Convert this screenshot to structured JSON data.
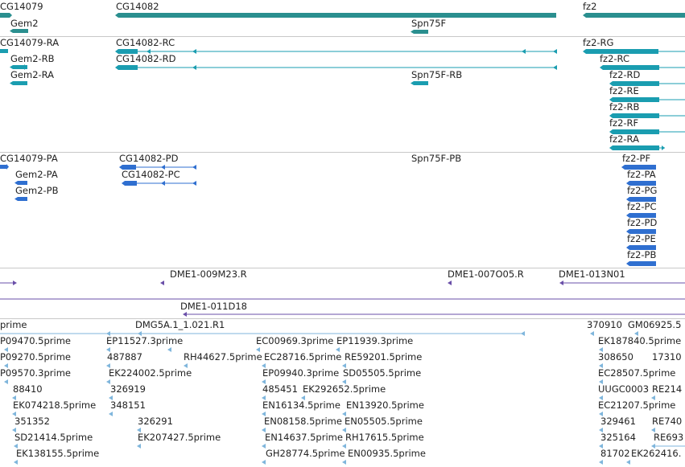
{
  "colors": {
    "gene": "#2a8f8f",
    "transcript": "#1a9db0",
    "protein": "#2f6fd0",
    "clone": "#6a4fa8",
    "est": "#7fb6dc",
    "separator": "#c8c8c8"
  },
  "genes": {
    "cg14079": "CG14079",
    "gem2": "Gem2",
    "cg14082": "CG14082",
    "spn75f": "Spn75F",
    "fz2": "fz2"
  },
  "transcripts": {
    "cg14079_ra": "CG14079-RA",
    "gem2_rb": "Gem2-RB",
    "gem2_ra": "Gem2-RA",
    "cg14082_rc": "CG14082-RC",
    "cg14082_rd": "CG14082-RD",
    "spn75f_rb": "Spn75F-RB",
    "fz2_rg": "fz2-RG",
    "fz2_rc": "fz2-RC",
    "fz2_rd": "fz2-RD",
    "fz2_re": "fz2-RE",
    "fz2_rb": "fz2-RB",
    "fz2_rf": "fz2-RF",
    "fz2_ra": "fz2-RA"
  },
  "proteins": {
    "cg14079_pa": "CG14079-PA",
    "gem2_pa": "Gem2-PA",
    "gem2_pb": "Gem2-PB",
    "cg14082_pd": "CG14082-PD",
    "cg14082_pc": "CG14082-PC",
    "spn75f_pb": "Spn75F-PB",
    "fz2_pf": "fz2-PF",
    "fz2_pa": "fz2-PA",
    "fz2_pg": "fz2-PG",
    "fz2_pc": "fz2-PC",
    "fz2_pd": "fz2-PD",
    "fz2_pe": "fz2-PE",
    "fz2_pb": "fz2-PB"
  },
  "clones": {
    "c1": "DME1-009M23.R",
    "c2": "DME1-007O05.R",
    "c3": "DME1-013N01",
    "c4": "DME1-011D18"
  },
  "ests": {
    "e01": "prime",
    "e02": "DMG5A.1_1.021.R1",
    "e03": "370910",
    "e04": "GM06925.5",
    "e05": "P09470.5prime",
    "e06": "EP11527.3prime",
    "e07": "EC00969.3prime",
    "e08": "EP11939.3prime",
    "e09": "EK187840.5prime",
    "e10": "P09270.5prime",
    "e11": "487887",
    "e12": "RH44627.5prime",
    "e13": "EC28716.5prime",
    "e14": "RE59201.5prime",
    "e15": "308650",
    "e16": "17310",
    "e17": "P09570.3prime",
    "e18": "EK224002.5prime",
    "e19": "EP09940.3prime",
    "e20": "SD05505.5prime",
    "e21": "EC28507.5prime",
    "e22": "88410",
    "e23": "326919",
    "e24": "485451",
    "e25": "EK292652.5prime",
    "e26": "UUGC0003",
    "e27": "RE214",
    "e28": "EK074218.5prime",
    "e29": "348151",
    "e30": "EN16134.5prime",
    "e31": "EN13920.5prime",
    "e32": "EC21207.5prime",
    "e33": "351352",
    "e34": "326291",
    "e35": "EN08158.5prime",
    "e36": "EN05505.5prime",
    "e37": "329461",
    "e38": "RE740",
    "e39": "SD21414.5prime",
    "e40": "EK207427.5prime",
    "e41": "EN14637.5prime",
    "e42": "RH17615.5prime",
    "e43": "325164",
    "e44": "RE693",
    "e45": "EK138155.5prime",
    "e46": "GH28774.5prime",
    "e47": "EN00935.5prime",
    "e48": "81702",
    "e49": "EK262416."
  }
}
